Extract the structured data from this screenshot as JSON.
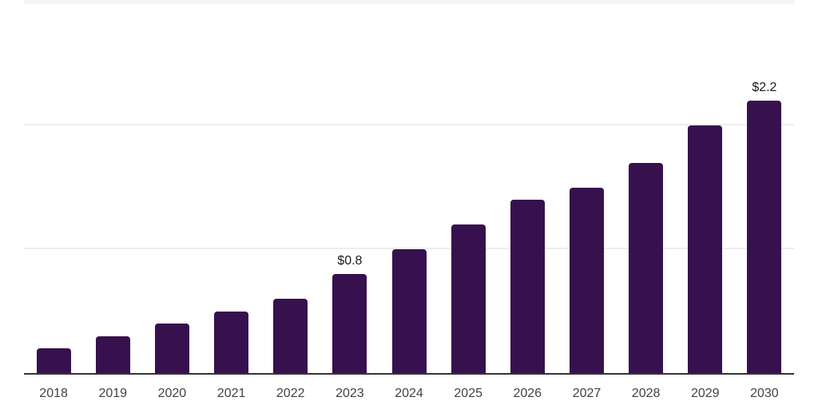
{
  "chart_data": {
    "type": "bar",
    "title": "",
    "xlabel": "",
    "ylabel": "",
    "categories": [
      "2018",
      "2019",
      "2020",
      "2021",
      "2022",
      "2023",
      "2024",
      "2025",
      "2026",
      "2027",
      "2028",
      "2029",
      "2030"
    ],
    "values": [
      0.2,
      0.3,
      0.4,
      0.5,
      0.6,
      0.8,
      1.0,
      1.2,
      1.4,
      1.5,
      1.7,
      2.0,
      2.2
    ],
    "data_labels": [
      "",
      "",
      "",
      "",
      "",
      "$0.8",
      "",
      "",
      "",
      "",
      "",
      "",
      "$2.2"
    ],
    "ylim": [
      0,
      3
    ],
    "gridline_values": [
      1.0,
      2.0,
      3.0
    ],
    "grid": "horizontal",
    "legend_position": "none",
    "currency_unit": "USD"
  },
  "colors": {
    "bar": "#37114D",
    "axis_line": "#343434",
    "gridline": "#ededf0",
    "gridline_top": "#f4f4f6",
    "data_label": "#1b1b1b",
    "tick_label": "#424242",
    "background": "#ffffff"
  }
}
